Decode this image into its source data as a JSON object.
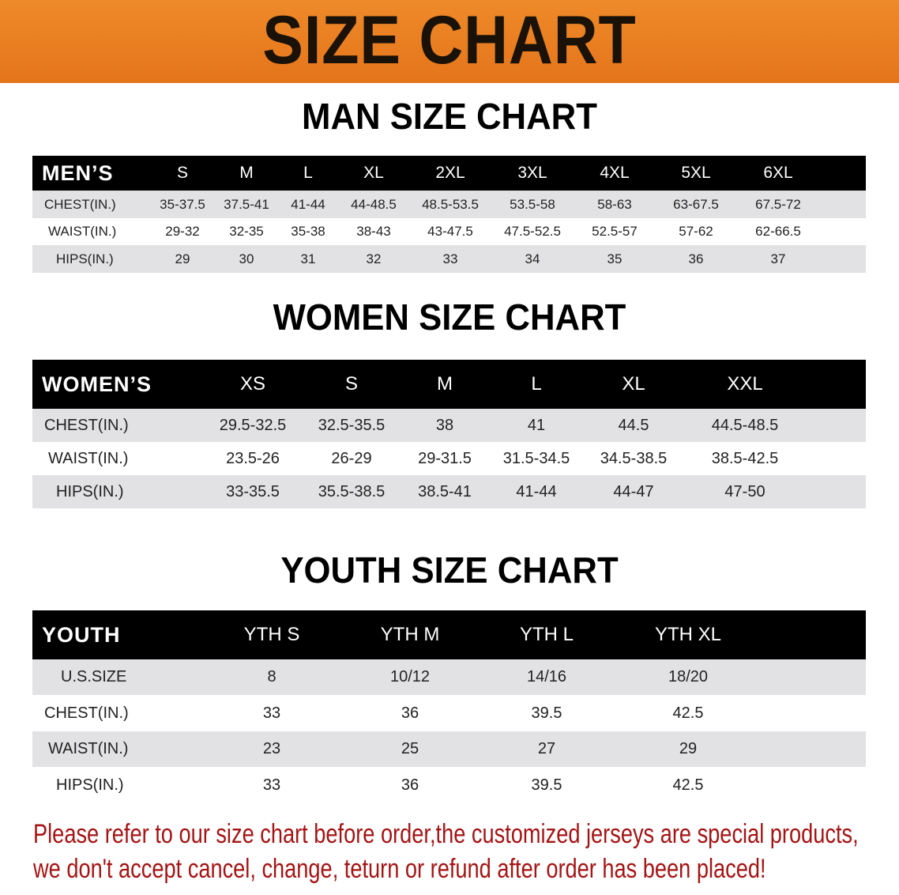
{
  "banner": {
    "title": "SIZE CHART",
    "color": "#e8791f"
  },
  "men": {
    "title": "MAN SIZE CHART",
    "header": [
      "MEN’S",
      "S",
      "M",
      "L",
      "XL",
      "2XL",
      "3XL",
      "4XL",
      "5XL",
      "6XL"
    ],
    "rows": [
      [
        "CHEST(IN.)",
        "35-37.5",
        "37.5-41",
        "41-44",
        "44-48.5",
        "48.5-53.5",
        "53.5-58",
        "58-63",
        "63-67.5",
        "67.5-72"
      ],
      [
        "WAIST(IN.)",
        "29-32",
        "32-35",
        "35-38",
        "38-43",
        "43-47.5",
        "47.5-52.5",
        "52.5-57",
        "57-62",
        "62-66.5"
      ],
      [
        "HIPS(IN.)",
        "29",
        "30",
        "31",
        "32",
        "33",
        "34",
        "35",
        "36",
        "37"
      ]
    ]
  },
  "women": {
    "title": "WOMEN SIZE CHART",
    "header": [
      "WOMEN’S",
      "XS",
      "S",
      "M",
      "L",
      "XL",
      "XXL"
    ],
    "rows": [
      [
        "CHEST(IN.)",
        "29.5-32.5",
        "32.5-35.5",
        "38",
        "41",
        "44.5",
        "44.5-48.5"
      ],
      [
        "WAIST(IN.)",
        "23.5-26",
        "26-29",
        "29-31.5",
        "31.5-34.5",
        "34.5-38.5",
        "38.5-42.5"
      ],
      [
        "HIPS(IN.)",
        "33-35.5",
        "35.5-38.5",
        "38.5-41",
        "41-44",
        "44-47",
        "47-50"
      ]
    ]
  },
  "youth": {
    "title": "YOUTH SIZE CHART",
    "header": [
      "YOUTH",
      "YTH S",
      "YTH M",
      "YTH L",
      "YTH XL"
    ],
    "rows": [
      [
        "U.S.SIZE",
        "8",
        "10/12",
        "14/16",
        "18/20"
      ],
      [
        "CHEST(IN.)",
        "33",
        "36",
        "39.5",
        "42.5"
      ],
      [
        "WAIST(IN.)",
        "23",
        "25",
        "27",
        "29"
      ],
      [
        "HIPS(IN.)",
        "33",
        "36",
        "39.5",
        "42.5"
      ]
    ]
  },
  "notice": {
    "line1": "Please refer to our size chart before order,the customized jerseys are special products,",
    "line2": "we don't accept cancel, change, teturn or refund after order has been placed!",
    "color": "#a51414"
  }
}
